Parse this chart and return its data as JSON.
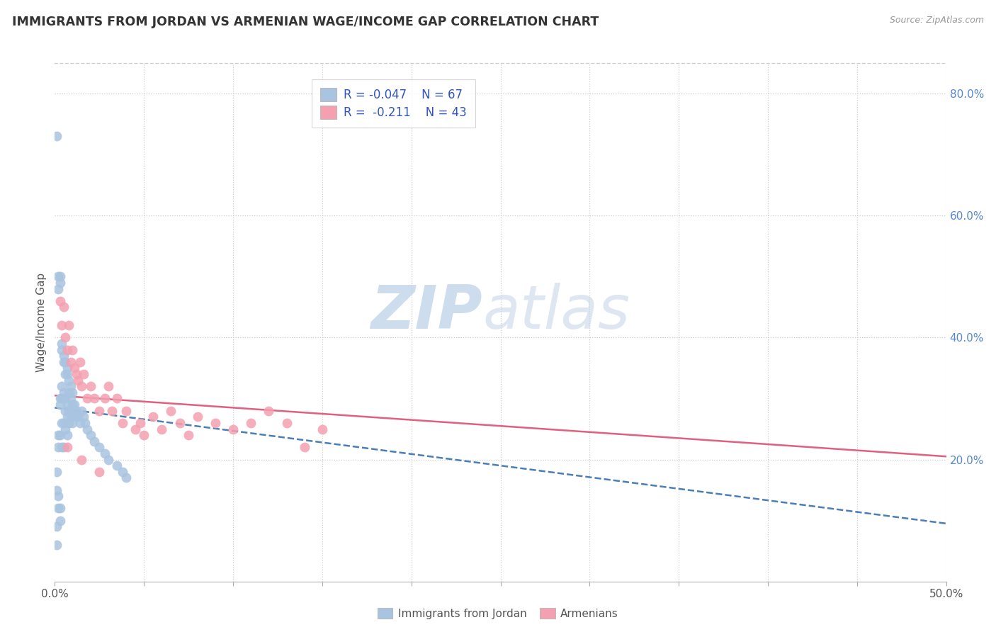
{
  "title": "IMMIGRANTS FROM JORDAN VS ARMENIAN WAGE/INCOME GAP CORRELATION CHART",
  "source": "Source: ZipAtlas.com",
  "ylabel": "Wage/Income Gap",
  "xlim": [
    0.0,
    0.5
  ],
  "ylim": [
    0.0,
    0.85
  ],
  "right_yticks": [
    0.2,
    0.4,
    0.6,
    0.8
  ],
  "right_yticklabels": [
    "20.0%",
    "40.0%",
    "60.0%",
    "80.0%"
  ],
  "jordan_color": "#a8c4e0",
  "armenian_color": "#f4a0b0",
  "trend_jordan_color": "#4a7eb5",
  "trend_armenian_color": "#e06080",
  "jordan_x": [
    0.001,
    0.001,
    0.001,
    0.001,
    0.002,
    0.002,
    0.002,
    0.002,
    0.002,
    0.003,
    0.003,
    0.003,
    0.003,
    0.003,
    0.003,
    0.004,
    0.004,
    0.004,
    0.004,
    0.004,
    0.004,
    0.005,
    0.005,
    0.005,
    0.005,
    0.005,
    0.005,
    0.006,
    0.006,
    0.006,
    0.006,
    0.006,
    0.007,
    0.007,
    0.007,
    0.007,
    0.007,
    0.008,
    0.008,
    0.008,
    0.008,
    0.009,
    0.009,
    0.009,
    0.01,
    0.01,
    0.01,
    0.011,
    0.011,
    0.012,
    0.012,
    0.013,
    0.014,
    0.015,
    0.016,
    0.017,
    0.018,
    0.02,
    0.022,
    0.025,
    0.028,
    0.03,
    0.035,
    0.038,
    0.04,
    0.002,
    0.003,
    0.001
  ],
  "jordan_y": [
    0.73,
    0.18,
    0.15,
    0.09,
    0.5,
    0.48,
    0.24,
    0.22,
    0.12,
    0.5,
    0.49,
    0.3,
    0.29,
    0.24,
    0.1,
    0.39,
    0.38,
    0.32,
    0.3,
    0.26,
    0.22,
    0.37,
    0.36,
    0.31,
    0.3,
    0.26,
    0.22,
    0.36,
    0.34,
    0.3,
    0.28,
    0.25,
    0.35,
    0.34,
    0.29,
    0.27,
    0.24,
    0.33,
    0.31,
    0.28,
    0.26,
    0.32,
    0.3,
    0.27,
    0.31,
    0.29,
    0.26,
    0.29,
    0.28,
    0.28,
    0.27,
    0.27,
    0.26,
    0.28,
    0.27,
    0.26,
    0.25,
    0.24,
    0.23,
    0.22,
    0.21,
    0.2,
    0.19,
    0.18,
    0.17,
    0.14,
    0.12,
    0.06
  ],
  "armenian_x": [
    0.003,
    0.004,
    0.005,
    0.006,
    0.007,
    0.008,
    0.009,
    0.01,
    0.011,
    0.012,
    0.013,
    0.014,
    0.015,
    0.016,
    0.018,
    0.02,
    0.022,
    0.025,
    0.028,
    0.03,
    0.032,
    0.035,
    0.038,
    0.04,
    0.045,
    0.048,
    0.05,
    0.055,
    0.06,
    0.065,
    0.07,
    0.075,
    0.08,
    0.09,
    0.1,
    0.11,
    0.12,
    0.13,
    0.14,
    0.15,
    0.007,
    0.015,
    0.025
  ],
  "armenian_y": [
    0.46,
    0.42,
    0.45,
    0.4,
    0.38,
    0.42,
    0.36,
    0.38,
    0.35,
    0.34,
    0.33,
    0.36,
    0.32,
    0.34,
    0.3,
    0.32,
    0.3,
    0.28,
    0.3,
    0.32,
    0.28,
    0.3,
    0.26,
    0.28,
    0.25,
    0.26,
    0.24,
    0.27,
    0.25,
    0.28,
    0.26,
    0.24,
    0.27,
    0.26,
    0.25,
    0.26,
    0.28,
    0.26,
    0.22,
    0.25,
    0.22,
    0.2,
    0.18
  ],
  "trend_jordan_start_y": 0.285,
  "trend_jordan_end_y": 0.095,
  "trend_armenian_start_y": 0.305,
  "trend_armenian_end_y": 0.205,
  "watermark_zip": "ZIP",
  "watermark_atlas": "atlas",
  "watermark_color": "#ccd8ea",
  "background_color": "#ffffff",
  "grid_color": "#cccccc"
}
